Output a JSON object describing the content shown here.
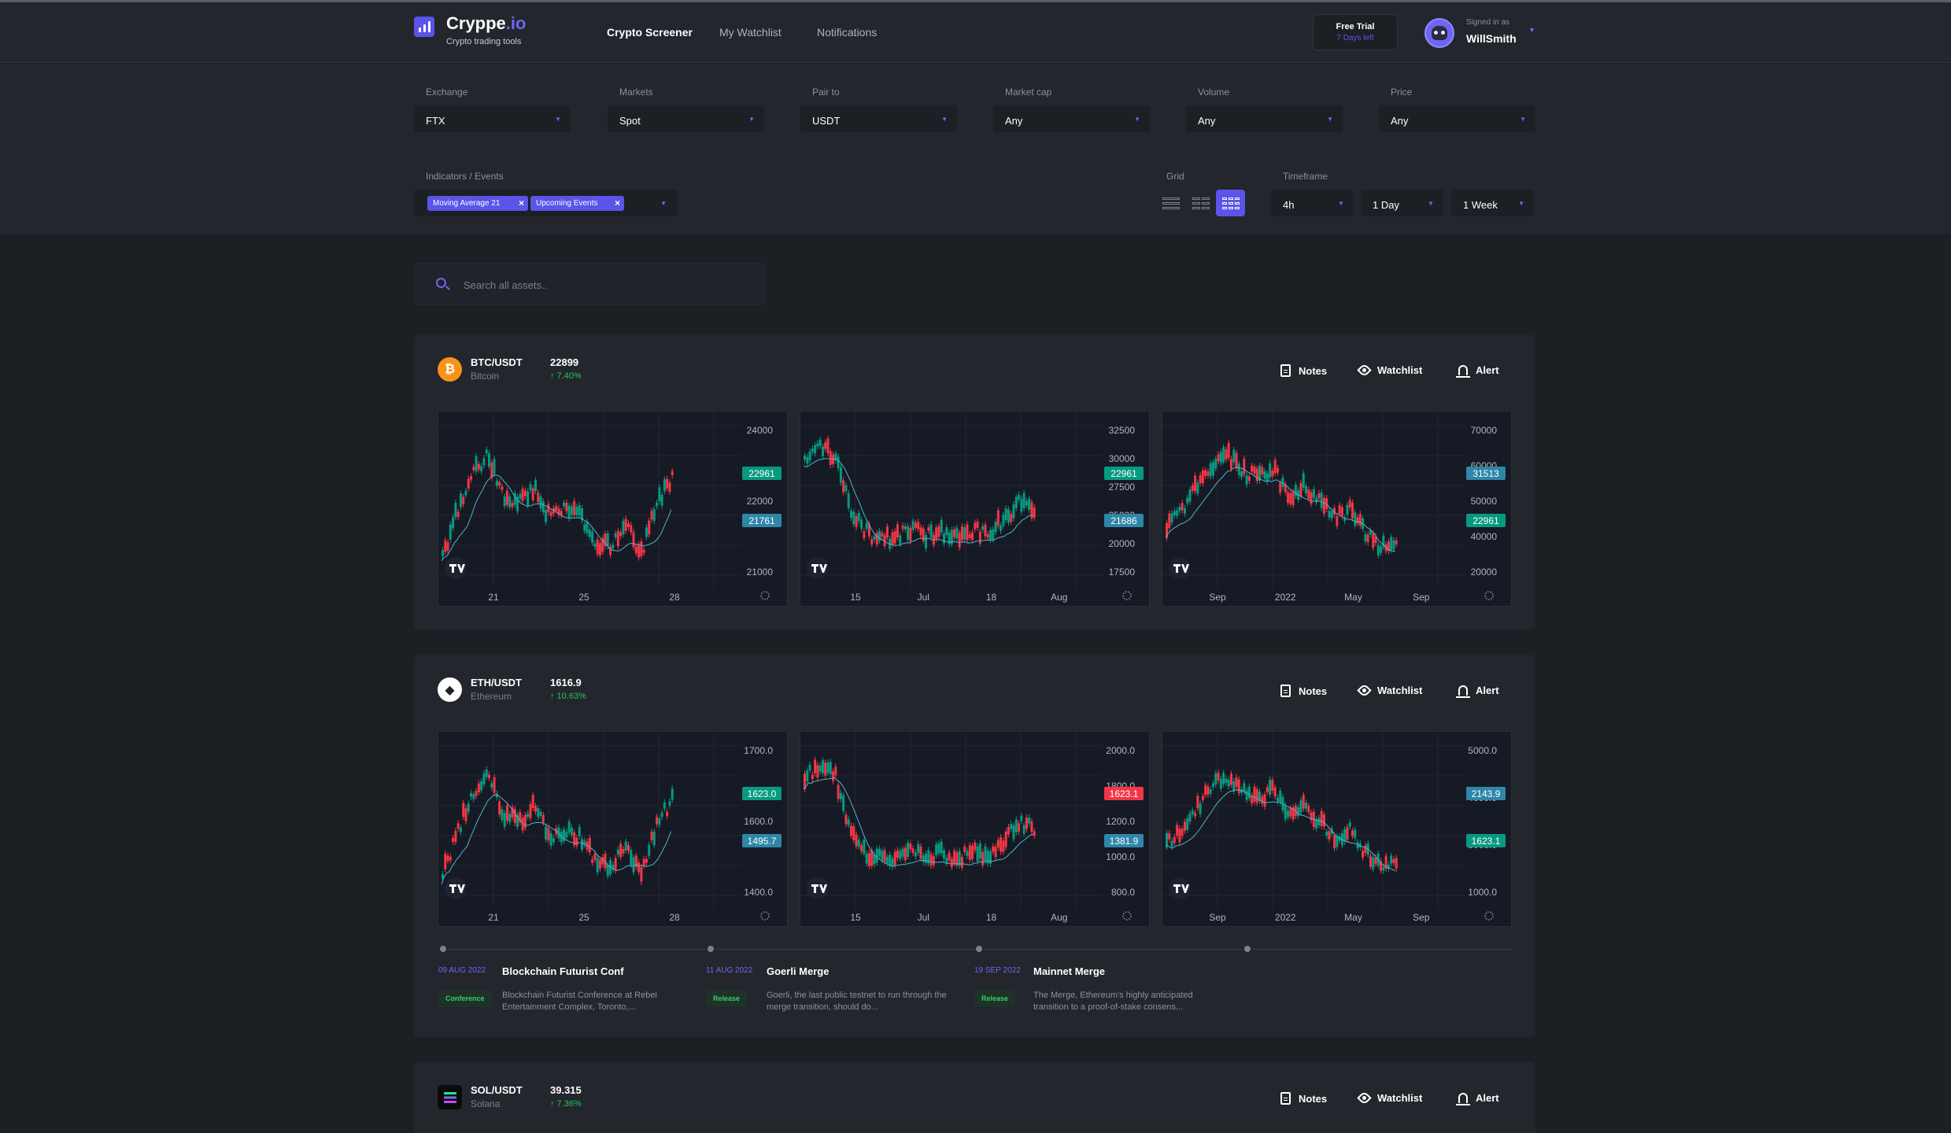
{
  "app": {
    "brand": "Cryppe",
    "brand_suffix": ".io",
    "tagline": "Crypto trading tools",
    "nav": [
      "Crypto Screener",
      "My Watchlist",
      "Notifications"
    ],
    "trial": {
      "title": "Free Trial",
      "days": "7 Days left"
    },
    "user": {
      "signed_label": "Signed in as",
      "name": "WillSmith"
    },
    "accent_color": "#5b54e8",
    "icons": {
      "logo": "bar-chart-icon",
      "avatar": "robot-avatar",
      "caret": "chevron-down-icon"
    }
  },
  "filters": {
    "exchange": {
      "label": "Exchange",
      "value": "FTX"
    },
    "markets": {
      "label": "Markets",
      "value": "Spot"
    },
    "pair": {
      "label": "Pair to",
      "value": "USDT"
    },
    "market_cap": {
      "label": "Market cap",
      "value": "Any"
    },
    "volume": {
      "label": "Volume",
      "value": "Any"
    },
    "price": {
      "label": "Price",
      "value": "Any"
    },
    "indicators": {
      "label": "Indicators / Events",
      "chips": [
        "Moving Average 21",
        "Upcoming Events"
      ]
    },
    "grid": {
      "label": "Grid",
      "active": 3
    },
    "timeframe": {
      "label": "Timeframe",
      "options": [
        "4h",
        "1 Day",
        "1 Week"
      ]
    }
  },
  "search": {
    "placeholder": "Search all assets.."
  },
  "actions": {
    "notes": "Notes",
    "watchlist": "Watchlist",
    "alert": "Alert"
  },
  "assets": [
    {
      "pair": "BTC/USDT",
      "name": "Bitcoin",
      "price": "22899",
      "change": "↑ 7.40%",
      "color": "#f7931a",
      "icon": "bitcoin-icon",
      "charts": [
        {
          "ticks": [
            "24000",
            "22000",
            "21000"
          ],
          "x_labels": [
            "21",
            "25",
            "28"
          ],
          "tags": [
            {
              "text": "22961",
              "color": "#089981"
            },
            {
              "text": "21761",
              "color": "#2f86a8"
            }
          ]
        },
        {
          "ticks": [
            "32500",
            "30000",
            "27500",
            "25000",
            "20000",
            "17500"
          ],
          "x_labels": [
            "15",
            "Jul",
            "18",
            "Aug"
          ],
          "tags": [
            {
              "text": "22961",
              "color": "#089981"
            },
            {
              "text": "21686",
              "color": "#2f86a8"
            }
          ]
        },
        {
          "ticks": [
            "70000",
            "60000",
            "50000",
            "40000",
            "20000"
          ],
          "x_labels": [
            "Sep",
            "2022",
            "May",
            "Sep"
          ],
          "tags": [
            {
              "text": "31513",
              "color": "#2f86a8"
            },
            {
              "text": "22961",
              "color": "#089981"
            }
          ]
        }
      ]
    },
    {
      "pair": "ETH/USDT",
      "name": "Ethereum",
      "price": "1616.9",
      "change": "↑ 10.63%",
      "color": "#ffffff",
      "icon": "ethereum-icon",
      "charts": [
        {
          "ticks": [
            "1700.0",
            "1600.0",
            "1400.0"
          ],
          "x_labels": [
            "21",
            "25",
            "28"
          ],
          "tags": [
            {
              "text": "1623.0",
              "color": "#089981"
            },
            {
              "text": "1495.7",
              "color": "#2f86a8"
            }
          ]
        },
        {
          "ticks": [
            "2000.0",
            "1800.0",
            "1200.0",
            "1000.0",
            "800.0"
          ],
          "x_labels": [
            "15",
            "Jul",
            "18",
            "Aug"
          ],
          "tags": [
            {
              "text": "1623.1",
              "color": "#f23645"
            },
            {
              "text": "1381.9",
              "color": "#2f86a8"
            }
          ]
        },
        {
          "ticks": [
            "5000.0",
            "4000.0",
            "3000.0",
            "1000.0"
          ],
          "x_labels": [
            "Sep",
            "2022",
            "May",
            "Sep"
          ],
          "tags": [
            {
              "text": "2143.9",
              "color": "#2f86a8"
            },
            {
              "text": "1623.1",
              "color": "#089981"
            }
          ]
        }
      ],
      "events": [
        {
          "date": "09 AUG 2022",
          "title": "Blockchain Futurist Conf",
          "tag": "Conference",
          "desc": "Blockchain Futurist Conference at Rebel Entertainment Complex, Toronto,..."
        },
        {
          "date": "11 AUG 2022",
          "title": "Goerli Merge",
          "tag": "Release",
          "desc": "Goerli, the last public testnet to run through the merge transition, should do..."
        },
        {
          "date": "19 SEP 2022",
          "title": "Mainnet Merge",
          "tag": "Release",
          "desc": "The Merge, Ethereum's highly anticipated transition to a proof-of-stake consens..."
        }
      ]
    },
    {
      "pair": "SOL/USDT",
      "name": "Solana",
      "price": "39.315",
      "change": "↑ 7.36%",
      "color": "#0b0b0b",
      "icon": "solana-icon"
    }
  ]
}
